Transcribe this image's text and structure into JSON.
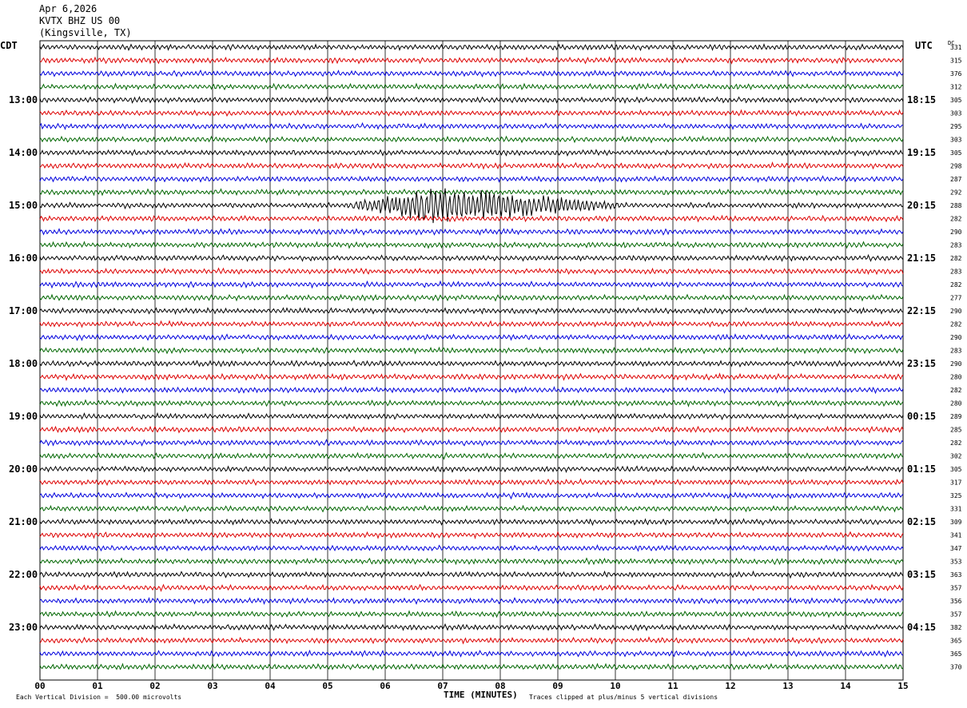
{
  "header": {
    "date": "Apr 6,2026",
    "station": "KVTX BHZ US 00",
    "location": "(Kingsville, TX)"
  },
  "axis_labels": {
    "left_timezone": "CDT",
    "right_timezone": "UTC",
    "dc_label": "DC",
    "x_title": "TIME (MINUTES)"
  },
  "footer": {
    "scale_note": "Each Vertical Division =  500.00 microvolts",
    "clip_note": "Traces clipped at plus/minus 5 vertical divisions"
  },
  "colors": {
    "trace_cycle": [
      "#000000",
      "#dd0000",
      "#0000dd",
      "#006600"
    ],
    "grid": "#000000"
  },
  "chart_data": {
    "type": "line",
    "title": "KVTX BHZ US 00 (Kingsville, TX)",
    "xlabel": "TIME (MINUTES)",
    "xlim": [
      0,
      15
    ],
    "x_ticks": [
      "00",
      "01",
      "02",
      "03",
      "04",
      "05",
      "06",
      "07",
      "08",
      "09",
      "10",
      "11",
      "12",
      "13",
      "14",
      "15"
    ],
    "rows_per_hour": 4,
    "row_minutes": 15,
    "left_hour_labels": [
      "13:00",
      "14:00",
      "15:00",
      "16:00",
      "17:00",
      "18:00",
      "19:00",
      "20:00",
      "21:00",
      "22:00",
      "23:00"
    ],
    "right_hour_labels": [
      "18:15",
      "19:15",
      "20:15",
      "21:15",
      "22:15",
      "23:15",
      "00:15",
      "01:15",
      "02:15",
      "03:15",
      "04:15"
    ],
    "first_labeled_row": 4,
    "dc_offsets": [
      331,
      315,
      376,
      312,
      305,
      303,
      295,
      303,
      305,
      298,
      287,
      292,
      288,
      282,
      290,
      283,
      282,
      283,
      282,
      277,
      290,
      282,
      290,
      283,
      290,
      280,
      282,
      280,
      289,
      285,
      282,
      302,
      305,
      317,
      325,
      331,
      309,
      341,
      347,
      353,
      363,
      357,
      356,
      357,
      382,
      365,
      365,
      370
    ],
    "events": [
      {
        "row": 12,
        "start_min": 5.3,
        "end_min": 10.2,
        "peak_min": 6.9,
        "label": "seismic event"
      }
    ]
  }
}
